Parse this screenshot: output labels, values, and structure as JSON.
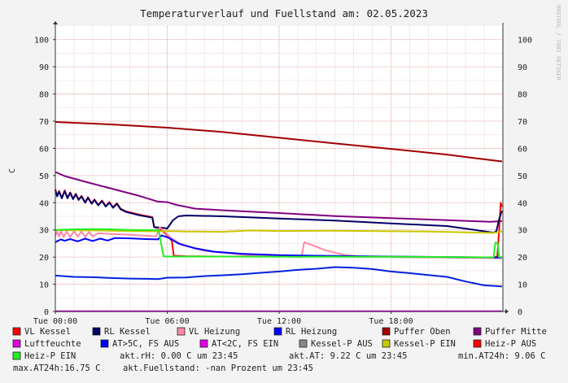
{
  "chart_data": {
    "type": "line",
    "title": "Temperaturverlauf und Fuellstand am: 02.05.2023",
    "ylabel": "C",
    "watermark": "RRDTOOL / TOBI OETIKER",
    "ylim": [
      0,
      105
    ],
    "yticks": [
      0,
      10,
      20,
      30,
      40,
      50,
      60,
      70,
      80,
      90,
      100
    ],
    "xlim": [
      0,
      24
    ],
    "xticks": [
      {
        "h": 0,
        "label": "Tue 00:00"
      },
      {
        "h": 6,
        "label": "Tue 06:00"
      },
      {
        "h": 12,
        "label": "Tue 12:00"
      },
      {
        "h": 18,
        "label": "Tue 18:00"
      }
    ],
    "grid": true,
    "series": [
      {
        "name": "Puffer Oben",
        "color": "#a00000",
        "points": [
          [
            0,
            69.7
          ],
          [
            3,
            68.8
          ],
          [
            6,
            67.6
          ],
          [
            9,
            66.0
          ],
          [
            12,
            63.9
          ],
          [
            15,
            61.8
          ],
          [
            18,
            59.8
          ],
          [
            21,
            57.7
          ],
          [
            22.5,
            56.4
          ],
          [
            23.95,
            55.2
          ]
        ]
      },
      {
        "name": "Puffer Mitte",
        "color": "#800080",
        "points": [
          [
            0,
            51.3
          ],
          [
            0.5,
            49.8
          ],
          [
            1.5,
            47.9
          ],
          [
            3,
            45.2
          ],
          [
            4.5,
            42.5
          ],
          [
            5.5,
            40.4
          ],
          [
            6,
            40.2
          ],
          [
            6.5,
            39.2
          ],
          [
            7.5,
            37.8
          ],
          [
            9,
            37.2
          ],
          [
            12,
            36.2
          ],
          [
            15,
            35.1
          ],
          [
            18,
            34.3
          ],
          [
            21,
            33.6
          ],
          [
            23.3,
            33.0
          ],
          [
            23.95,
            33.2
          ]
        ]
      },
      {
        "name": "VL Kessel",
        "color": "#ff0000",
        "points": [
          [
            0,
            44.9
          ],
          [
            0.1,
            42.5
          ],
          [
            0.2,
            44.3
          ],
          [
            0.35,
            41.8
          ],
          [
            0.5,
            44.5
          ],
          [
            0.65,
            41.8
          ],
          [
            0.8,
            43.8
          ],
          [
            0.95,
            41.5
          ],
          [
            1.1,
            43.3
          ],
          [
            1.25,
            41.2
          ],
          [
            1.4,
            42.5
          ],
          [
            1.6,
            40.2
          ],
          [
            1.75,
            42.0
          ],
          [
            1.95,
            39.8
          ],
          [
            2.1,
            41.2
          ],
          [
            2.3,
            39.2
          ],
          [
            2.5,
            40.8
          ],
          [
            2.7,
            38.8
          ],
          [
            2.9,
            40.2
          ],
          [
            3.1,
            38.3
          ],
          [
            3.3,
            39.8
          ],
          [
            3.5,
            37.8
          ],
          [
            3.8,
            36.8
          ],
          [
            4.5,
            35.6
          ],
          [
            5.2,
            34.7
          ],
          [
            5.3,
            31.0
          ],
          [
            5.6,
            30.5
          ],
          [
            6.0,
            28.0
          ],
          [
            6.25,
            26.0
          ],
          [
            6.35,
            20.5
          ],
          [
            7,
            20.3
          ],
          [
            9,
            20.2
          ],
          [
            12,
            20.2
          ],
          [
            15,
            20.2
          ],
          [
            18,
            20.1
          ],
          [
            21,
            19.9
          ],
          [
            23.5,
            19.8
          ],
          [
            23.7,
            20.2
          ],
          [
            23.8,
            30.0
          ],
          [
            23.88,
            40.0
          ],
          [
            23.95,
            38.5
          ]
        ]
      },
      {
        "name": "RL Kessel",
        "color": "#000066",
        "points": [
          [
            0,
            44.7
          ],
          [
            0.1,
            42.3
          ],
          [
            0.2,
            44.1
          ],
          [
            0.35,
            41.6
          ],
          [
            0.5,
            44.3
          ],
          [
            0.65,
            41.6
          ],
          [
            0.8,
            43.6
          ],
          [
            0.95,
            41.3
          ],
          [
            1.1,
            43.1
          ],
          [
            1.25,
            41.0
          ],
          [
            1.4,
            42.3
          ],
          [
            1.6,
            40.0
          ],
          [
            1.75,
            41.8
          ],
          [
            1.95,
            39.6
          ],
          [
            2.1,
            41.0
          ],
          [
            2.3,
            39.0
          ],
          [
            2.5,
            40.6
          ],
          [
            2.7,
            38.6
          ],
          [
            2.9,
            40.0
          ],
          [
            3.1,
            38.1
          ],
          [
            3.3,
            39.6
          ],
          [
            3.5,
            37.6
          ],
          [
            3.8,
            36.6
          ],
          [
            4.5,
            35.4
          ],
          [
            5.2,
            34.5
          ],
          [
            5.3,
            31.0
          ],
          [
            5.7,
            30.8
          ],
          [
            6.0,
            30.5
          ],
          [
            6.3,
            33.5
          ],
          [
            6.6,
            35.0
          ],
          [
            7.0,
            35.3
          ],
          [
            9,
            35.0
          ],
          [
            12,
            34.2
          ],
          [
            15,
            33.4
          ],
          [
            18,
            32.4
          ],
          [
            21,
            31.4
          ],
          [
            22.5,
            30.0
          ],
          [
            23.5,
            29.0
          ],
          [
            23.65,
            29.5
          ],
          [
            23.8,
            34.0
          ],
          [
            23.95,
            37.0
          ]
        ]
      },
      {
        "name": "VL Heizung",
        "color": "#ff88aa",
        "points": [
          [
            0,
            27.8
          ],
          [
            0.1,
            29.5
          ],
          [
            0.2,
            27.5
          ],
          [
            0.3,
            29.6
          ],
          [
            0.45,
            27.4
          ],
          [
            0.6,
            29.5
          ],
          [
            0.8,
            27.3
          ],
          [
            1.0,
            29.6
          ],
          [
            1.2,
            27.5
          ],
          [
            1.4,
            29.4
          ],
          [
            1.6,
            27.4
          ],
          [
            1.8,
            29.3
          ],
          [
            2.0,
            27.6
          ],
          [
            2.3,
            28.8
          ],
          [
            3,
            28.5
          ],
          [
            4,
            28.2
          ],
          [
            5,
            27.8
          ],
          [
            5.4,
            27.6
          ],
          [
            5.6,
            31.0
          ],
          [
            6.2,
            27.0
          ],
          [
            6.8,
            24.5
          ],
          [
            8,
            22.3
          ],
          [
            10,
            20.9
          ],
          [
            12,
            20.3
          ],
          [
            13.2,
            20.0
          ],
          [
            13.35,
            25.5
          ],
          [
            13.6,
            24.8
          ],
          [
            14.5,
            22.5
          ],
          [
            15.5,
            20.8
          ],
          [
            16.5,
            20.2
          ],
          [
            18,
            20.0
          ],
          [
            21,
            19.8
          ],
          [
            23.95,
            19.6
          ]
        ]
      },
      {
        "name": "RL Heizung",
        "color": "#0000ff",
        "points": [
          [
            0,
            25.5
          ],
          [
            0.3,
            26.5
          ],
          [
            0.5,
            26.0
          ],
          [
            0.8,
            26.6
          ],
          [
            1.2,
            25.8
          ],
          [
            1.6,
            26.8
          ],
          [
            2.0,
            25.9
          ],
          [
            2.4,
            26.8
          ],
          [
            2.8,
            26.1
          ],
          [
            3.2,
            27.0
          ],
          [
            4,
            26.9
          ],
          [
            5,
            26.6
          ],
          [
            5.5,
            26.5
          ],
          [
            5.7,
            28.0
          ],
          [
            6.1,
            27.0
          ],
          [
            6.6,
            25.0
          ],
          [
            7.5,
            23.2
          ],
          [
            8.5,
            22.0
          ],
          [
            10,
            21.2
          ],
          [
            12,
            20.7
          ],
          [
            15,
            20.4
          ],
          [
            18,
            20.2
          ],
          [
            21,
            20.0
          ],
          [
            23.95,
            19.8
          ]
        ]
      },
      {
        "name": "Kessel-P EIN",
        "color": "#c8c800",
        "points": [
          [
            0,
            29.9
          ],
          [
            2,
            29.8
          ],
          [
            4,
            29.6
          ],
          [
            5.5,
            29.5
          ],
          [
            6,
            29.6
          ],
          [
            6.5,
            29.5
          ],
          [
            7,
            29.4
          ],
          [
            9,
            29.3
          ],
          [
            10.5,
            29.8
          ],
          [
            12,
            29.6
          ],
          [
            15,
            29.7
          ],
          [
            18,
            29.5
          ],
          [
            20,
            29.4
          ],
          [
            22,
            29.1
          ],
          [
            23.5,
            28.9
          ],
          [
            23.95,
            29.4
          ]
        ]
      },
      {
        "name": "Heiz-P EIN",
        "color": "#22ee22",
        "points": [
          [
            0,
            30.0
          ],
          [
            1,
            30.2
          ],
          [
            2,
            30.3
          ],
          [
            3,
            30.2
          ],
          [
            4,
            30.0
          ],
          [
            5,
            29.9
          ],
          [
            5.55,
            29.9
          ],
          [
            5.6,
            27.5
          ],
          [
            5.7,
            24.0
          ],
          [
            5.8,
            20.3
          ],
          [
            6,
            20.2
          ],
          [
            9,
            20.2
          ],
          [
            12,
            20.1
          ],
          [
            15,
            20.1
          ],
          [
            18,
            20.1
          ],
          [
            21,
            20.0
          ],
          [
            23.5,
            19.9
          ],
          [
            23.6,
            25.4
          ],
          [
            23.72,
            25.0
          ],
          [
            23.8,
            20.0
          ],
          [
            23.95,
            20.0
          ]
        ]
      },
      {
        "name": "akt.AT",
        "color": "#0022dd",
        "points": [
          [
            0,
            13.2
          ],
          [
            1,
            12.7
          ],
          [
            2,
            12.6
          ],
          [
            3,
            12.3
          ],
          [
            4,
            12.1
          ],
          [
            5,
            12.0
          ],
          [
            5.5,
            11.9
          ],
          [
            6,
            12.4
          ],
          [
            7,
            12.5
          ],
          [
            8,
            13.0
          ],
          [
            9,
            13.3
          ],
          [
            10,
            13.7
          ],
          [
            11,
            14.2
          ],
          [
            12,
            14.7
          ],
          [
            13,
            15.3
          ],
          [
            14,
            15.7
          ],
          [
            15,
            16.3
          ],
          [
            16,
            16.1
          ],
          [
            17,
            15.6
          ],
          [
            18,
            14.7
          ],
          [
            19,
            14.1
          ],
          [
            20,
            13.4
          ],
          [
            21,
            12.7
          ],
          [
            22,
            11.0
          ],
          [
            23,
            9.6
          ],
          [
            23.95,
            9.2
          ]
        ]
      },
      {
        "name": "Luftfeuchte",
        "color": "#e000e0",
        "points": [
          [
            0,
            0.1
          ],
          [
            23.95,
            0.1
          ]
        ]
      }
    ],
    "legend": [
      {
        "label": "VL Kessel",
        "color": "#ff0000"
      },
      {
        "label": "RL Kessel",
        "color": "#000066"
      },
      {
        "label": "VL Heizung",
        "color": "#ff88aa"
      },
      {
        "label": "RL Heizung",
        "color": "#0000ff"
      },
      {
        "label": "Puffer Oben",
        "color": "#a00000"
      },
      {
        "label": "Puffer Mitte",
        "color": "#800080"
      },
      {
        "label": "Luftfeuchte",
        "color": "#e000e0"
      },
      {
        "label": "AT>5C, FS AUS",
        "color": "#0000ff"
      },
      {
        "label": "AT<2C, FS EIN",
        "color": "#e000e0"
      },
      {
        "label": "Kessel-P AUS",
        "color": "#888888"
      },
      {
        "label": "Kessel-P EIN",
        "color": "#c8c800"
      },
      {
        "label": "Heiz-P AUS",
        "color": "#ff0000"
      },
      {
        "label": "Heiz-P EIN",
        "color": "#22ee22"
      }
    ],
    "legend_text": {
      "rh": "akt.rH: 0.00 C um 23:45",
      "at": "akt.AT: 9.22 C um 23:45",
      "min": "min.AT24h: 9.06 C",
      "max": "max.AT24h:16.75 C",
      "fuell": "akt.Fuellstand: -nan Prozent um 23:45"
    }
  }
}
